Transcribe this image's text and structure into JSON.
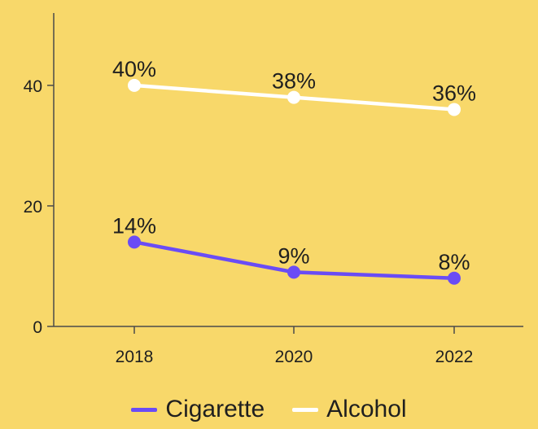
{
  "colors": {
    "background": "#f8d86a",
    "axis": "#4a4a4a",
    "cigarette": "#6a4cf5",
    "alcohol": "#ffffff"
  },
  "chart_data": {
    "type": "line",
    "title": "",
    "xlabel": "",
    "ylabel": "",
    "x": [
      "2018",
      "2020",
      "2022"
    ],
    "yticks": [
      0,
      20,
      40
    ],
    "ylim": [
      0,
      52
    ],
    "grid": false,
    "legend_position": "bottom",
    "series": [
      {
        "name": "Cigarette",
        "color": "#6a4cf5",
        "values": [
          14,
          9,
          8
        ],
        "labels": [
          "14%",
          "9%",
          "8%"
        ]
      },
      {
        "name": "Alcohol",
        "color": "#ffffff",
        "values": [
          40,
          38,
          36
        ],
        "labels": [
          "40%",
          "38%",
          "36%"
        ]
      }
    ]
  }
}
